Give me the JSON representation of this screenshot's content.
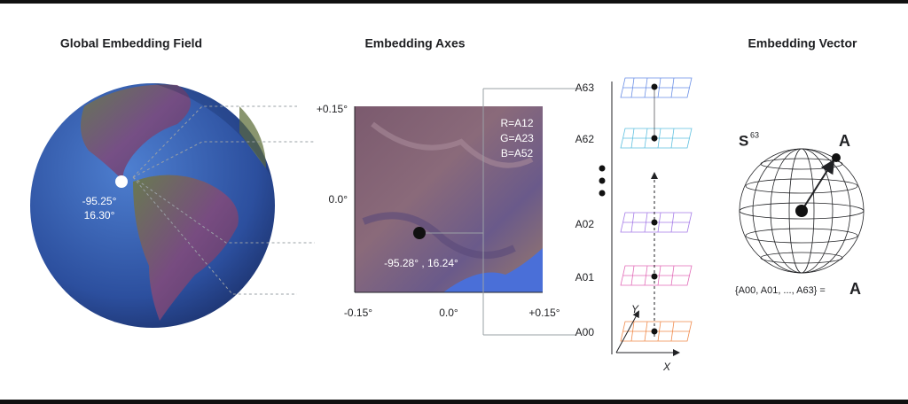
{
  "global_field": {
    "title": "Global Embedding Field",
    "lon": "-95.25°",
    "lat": "16.30°"
  },
  "axes": {
    "title": "Embedding Axes",
    "y_ticks": [
      "+0.15°",
      "0.0°"
    ],
    "x_ticks": [
      "-0.15°",
      "0.0°",
      "+0.15°"
    ],
    "bands": [
      "R=A12",
      "G=A23",
      "B=A52"
    ],
    "point": "-95.28° , 16.24°"
  },
  "layers": {
    "labels": [
      "A63",
      "A62",
      "A02",
      "A01",
      "A00"
    ],
    "y_axis": "Y",
    "x_axis": "X"
  },
  "vector": {
    "title": "Embedding Vector",
    "sphere": "S",
    "dim": "63",
    "point": "A",
    "set": "{A00, A01, ..., A63} =",
    "set_symbol": "A"
  }
}
